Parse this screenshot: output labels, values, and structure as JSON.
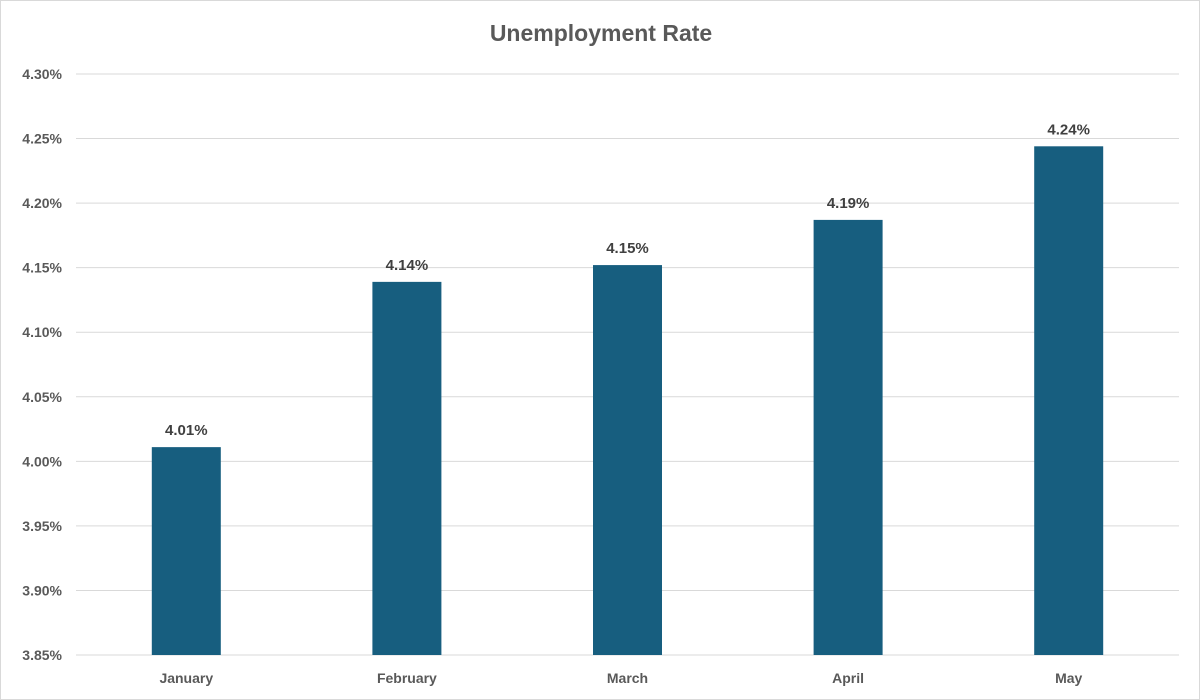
{
  "chart_data": {
    "type": "bar",
    "title": "Unemployment Rate",
    "xlabel": "",
    "ylabel": "",
    "categories": [
      "January",
      "February",
      "March",
      "April",
      "May"
    ],
    "series": [
      {
        "values": [
          4.011,
          4.139,
          4.152,
          4.187,
          4.244
        ],
        "data_labels": [
          "4.01%",
          "4.14%",
          "4.15%",
          "4.19%",
          "4.24%"
        ]
      }
    ],
    "ylim": [
      3.85,
      4.3
    ],
    "yticks": [
      3.85,
      3.9,
      3.95,
      4.0,
      4.05,
      4.1,
      4.15,
      4.2,
      4.25,
      4.3
    ],
    "ytick_labels": [
      "3.85%",
      "3.90%",
      "3.95%",
      "4.00%",
      "4.05%",
      "4.10%",
      "4.15%",
      "4.20%",
      "4.25%",
      "4.30%"
    ],
    "grid": true,
    "legend": "none",
    "colors": {
      "bar": "#175e7f",
      "grid": "#d9d9d9",
      "axis_text": "#595959",
      "data_label": "#404040"
    }
  }
}
